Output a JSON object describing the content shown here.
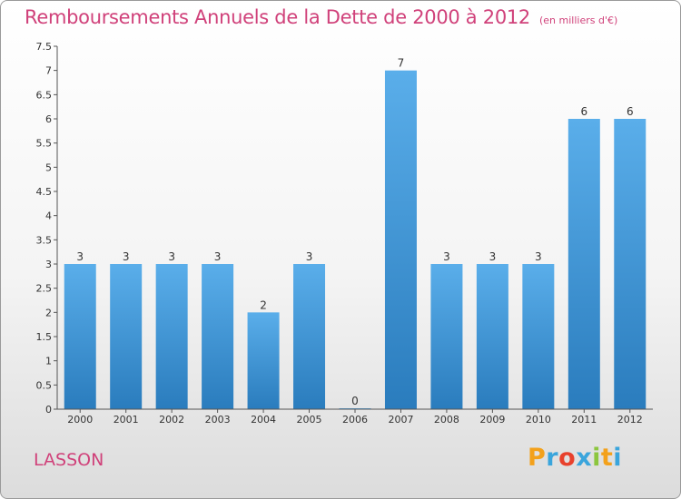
{
  "chart_data": {
    "type": "bar",
    "title": "Remboursements Annuels de la Dette de 2000 à 2012",
    "unit": "(en milliers d'€)",
    "categories": [
      "2000",
      "2001",
      "2002",
      "2003",
      "2004",
      "2005",
      "2006",
      "2007",
      "2008",
      "2009",
      "2010",
      "2011",
      "2012"
    ],
    "values": [
      3,
      3,
      3,
      3,
      2,
      3,
      0,
      7,
      3,
      3,
      3,
      6,
      6
    ],
    "data_labels": [
      "3",
      "3",
      "3",
      "3",
      "2",
      "3",
      "0",
      "7",
      "3",
      "3",
      "3",
      "6",
      "6"
    ],
    "y_ticks": [
      {
        "value": 0,
        "label": "0"
      },
      {
        "value": 0.5,
        "label": "0.5"
      },
      {
        "value": 1,
        "label": "1"
      },
      {
        "value": 1.5,
        "label": "1.5"
      },
      {
        "value": 2,
        "label": "2"
      },
      {
        "value": 2.5,
        "label": "2.5"
      },
      {
        "value": 3,
        "label": "3"
      },
      {
        "value": 3.5,
        "label": "3.5"
      },
      {
        "value": 4,
        "label": "4"
      },
      {
        "value": 4.5,
        "label": "4.5"
      },
      {
        "value": 5,
        "label": "5"
      },
      {
        "value": 5.5,
        "label": "5.5"
      },
      {
        "value": 6,
        "label": "6"
      },
      {
        "value": 6.5,
        "label": "6.5"
      },
      {
        "value": 7,
        "label": "7"
      },
      {
        "value": 7.5,
        "label": "7.5"
      }
    ],
    "ylim": [
      0,
      7.5
    ],
    "xlabel": "",
    "ylabel": "",
    "grid": false,
    "legend": "none",
    "bar_color_top": "#5aaeea",
    "bar_color_bottom": "#2a7cbd"
  },
  "commune": "LASSON",
  "brand": {
    "letters": [
      "P",
      "r",
      "o",
      "x",
      "i",
      "t",
      "i"
    ],
    "colors": [
      "#f3a11b",
      "#3aa5dc",
      "#e8412c",
      "#3aa5dc",
      "#8cc63e",
      "#f3a11b",
      "#3aa5dc"
    ]
  },
  "colors": {
    "title": "#d0417a",
    "axis": "#555555"
  }
}
